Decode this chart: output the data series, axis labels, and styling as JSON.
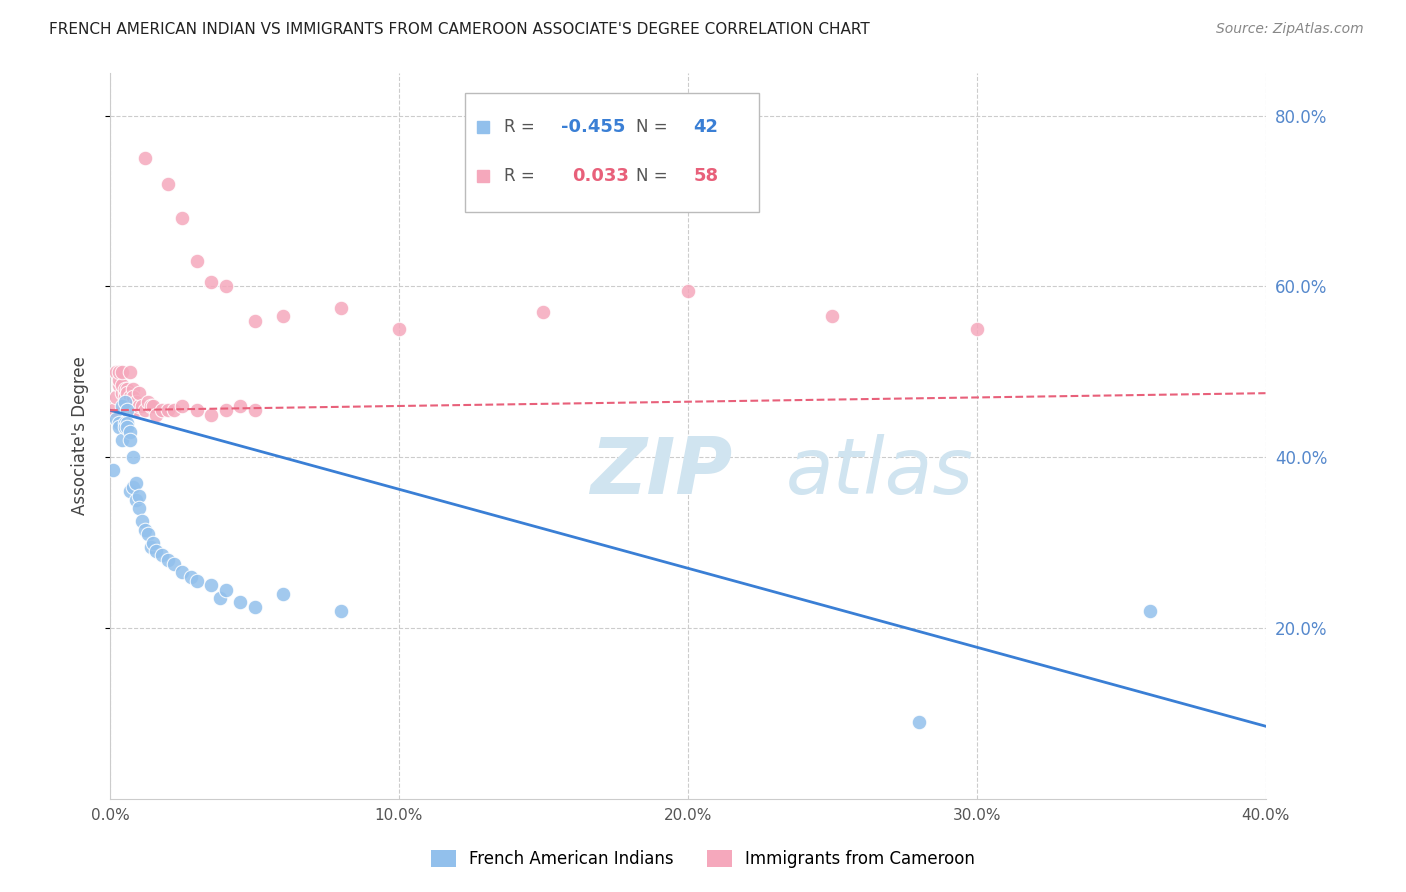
{
  "title": "FRENCH AMERICAN INDIAN VS IMMIGRANTS FROM CAMEROON ASSOCIATE'S DEGREE CORRELATION CHART",
  "source": "Source: ZipAtlas.com",
  "ylabel": "Associate's Degree",
  "xlim": [
    0.0,
    0.4
  ],
  "ylim": [
    0.0,
    0.85
  ],
  "xticks": [
    0.0,
    0.1,
    0.2,
    0.3,
    0.4
  ],
  "yticks": [
    0.2,
    0.4,
    0.6,
    0.8
  ],
  "xtick_labels": [
    "0.0%",
    "10.0%",
    "20.0%",
    "30.0%",
    "40.0%"
  ],
  "ytick_labels": [
    "20.0%",
    "40.0%",
    "60.0%",
    "80.0%"
  ],
  "blue_R": "-0.455",
  "blue_N": "42",
  "pink_R": "0.033",
  "pink_N": "58",
  "legend_label_blue": "French American Indians",
  "legend_label_pink": "Immigrants from Cameroon",
  "blue_color": "#92C0EC",
  "pink_color": "#F5A8BC",
  "blue_line_color": "#3A7FD5",
  "pink_line_color": "#E8607A",
  "background_color": "#FFFFFF",
  "grid_color": "#CCCCCC",
  "title_color": "#222222",
  "right_axis_label_color": "#5588CC",
  "watermark_color": "#D0E4F0",
  "blue_x": [
    0.001,
    0.002,
    0.003,
    0.003,
    0.004,
    0.004,
    0.005,
    0.005,
    0.005,
    0.006,
    0.006,
    0.006,
    0.007,
    0.007,
    0.007,
    0.008,
    0.008,
    0.009,
    0.009,
    0.01,
    0.01,
    0.011,
    0.012,
    0.013,
    0.014,
    0.015,
    0.016,
    0.018,
    0.02,
    0.022,
    0.025,
    0.028,
    0.03,
    0.035,
    0.038,
    0.04,
    0.045,
    0.05,
    0.06,
    0.08,
    0.28,
    0.36
  ],
  "blue_y": [
    0.385,
    0.445,
    0.44,
    0.435,
    0.42,
    0.46,
    0.44,
    0.435,
    0.465,
    0.455,
    0.44,
    0.435,
    0.43,
    0.36,
    0.42,
    0.4,
    0.365,
    0.37,
    0.35,
    0.355,
    0.34,
    0.325,
    0.315,
    0.31,
    0.295,
    0.3,
    0.29,
    0.285,
    0.28,
    0.275,
    0.265,
    0.26,
    0.255,
    0.25,
    0.235,
    0.245,
    0.23,
    0.225,
    0.24,
    0.22,
    0.09,
    0.22
  ],
  "pink_x": [
    0.001,
    0.002,
    0.002,
    0.003,
    0.003,
    0.003,
    0.004,
    0.004,
    0.004,
    0.005,
    0.005,
    0.005,
    0.005,
    0.006,
    0.006,
    0.006,
    0.006,
    0.007,
    0.007,
    0.007,
    0.007,
    0.008,
    0.008,
    0.008,
    0.008,
    0.009,
    0.009,
    0.01,
    0.01,
    0.011,
    0.012,
    0.013,
    0.014,
    0.015,
    0.016,
    0.018,
    0.02,
    0.022,
    0.025,
    0.03,
    0.035,
    0.04,
    0.045,
    0.05,
    0.012,
    0.02,
    0.025,
    0.03,
    0.035,
    0.04,
    0.05,
    0.06,
    0.08,
    0.1,
    0.15,
    0.2,
    0.25,
    0.3
  ],
  "pink_y": [
    0.455,
    0.5,
    0.47,
    0.485,
    0.49,
    0.5,
    0.475,
    0.485,
    0.5,
    0.46,
    0.475,
    0.48,
    0.47,
    0.455,
    0.46,
    0.48,
    0.475,
    0.455,
    0.46,
    0.47,
    0.5,
    0.455,
    0.465,
    0.48,
    0.47,
    0.455,
    0.465,
    0.46,
    0.475,
    0.46,
    0.455,
    0.465,
    0.46,
    0.46,
    0.45,
    0.455,
    0.455,
    0.455,
    0.46,
    0.455,
    0.45,
    0.455,
    0.46,
    0.455,
    0.75,
    0.72,
    0.68,
    0.63,
    0.605,
    0.6,
    0.56,
    0.565,
    0.575,
    0.55,
    0.57,
    0.595,
    0.565,
    0.55
  ]
}
